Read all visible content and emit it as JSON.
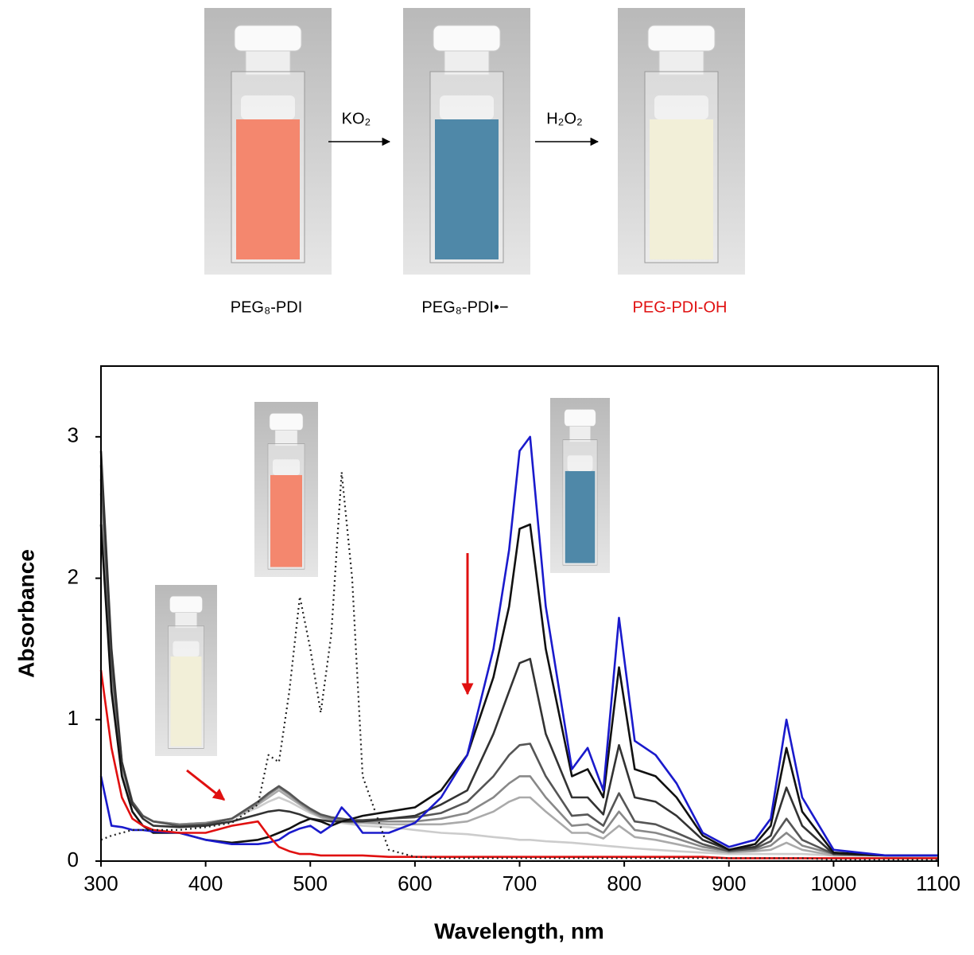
{
  "figure": {
    "photo_labels": [
      "PEG₈-PDI",
      "PEG₈-PDI•−",
      "PEG-PDI-OH"
    ],
    "reagents": [
      "KO₂",
      "H₂O₂"
    ]
  },
  "chart_data": {
    "type": "line",
    "x_label": "Wavelength, nm",
    "y_label": "Absorbance",
    "xlim": [
      300,
      1100
    ],
    "xticks": [
      300,
      400,
      500,
      600,
      700,
      800,
      900,
      1000,
      1100
    ],
    "ylim": [
      0,
      3.5
    ],
    "yticks": [
      0,
      1,
      2,
      3
    ],
    "x": [
      300,
      310,
      320,
      330,
      340,
      350,
      375,
      400,
      425,
      450,
      460,
      470,
      480,
      490,
      500,
      510,
      520,
      530,
      540,
      550,
      575,
      600,
      625,
      650,
      675,
      690,
      700,
      710,
      725,
      750,
      765,
      780,
      795,
      810,
      830,
      850,
      875,
      900,
      925,
      940,
      955,
      970,
      1000,
      1050,
      1100
    ],
    "series": [
      {
        "color": "#cccccc",
        "values": [
          2.6,
          1.3,
          0.65,
          0.4,
          0.32,
          0.28,
          0.26,
          0.27,
          0.3,
          0.38,
          0.42,
          0.45,
          0.42,
          0.38,
          0.34,
          0.31,
          0.29,
          0.27,
          0.26,
          0.25,
          0.24,
          0.22,
          0.2,
          0.19,
          0.17,
          0.16,
          0.15,
          0.15,
          0.14,
          0.13,
          0.12,
          0.11,
          0.1,
          0.09,
          0.08,
          0.07,
          0.06,
          0.05,
          0.05,
          0.05,
          0.05,
          0.05,
          0.04,
          0.04,
          0.04
        ]
      },
      {
        "color": "#aaaaaa",
        "values": [
          2.6,
          1.3,
          0.65,
          0.4,
          0.32,
          0.28,
          0.26,
          0.27,
          0.3,
          0.4,
          0.45,
          0.5,
          0.45,
          0.4,
          0.35,
          0.31,
          0.29,
          0.28,
          0.27,
          0.27,
          0.26,
          0.26,
          0.26,
          0.28,
          0.35,
          0.42,
          0.45,
          0.45,
          0.35,
          0.2,
          0.2,
          0.16,
          0.25,
          0.17,
          0.15,
          0.12,
          0.08,
          0.06,
          0.07,
          0.08,
          0.13,
          0.08,
          0.04,
          0.04,
          0.04
        ]
      },
      {
        "color": "#888888",
        "values": [
          2.7,
          1.35,
          0.68,
          0.41,
          0.32,
          0.28,
          0.26,
          0.27,
          0.3,
          0.41,
          0.47,
          0.52,
          0.47,
          0.41,
          0.36,
          0.32,
          0.3,
          0.29,
          0.28,
          0.28,
          0.28,
          0.28,
          0.3,
          0.34,
          0.45,
          0.55,
          0.6,
          0.6,
          0.45,
          0.25,
          0.26,
          0.2,
          0.35,
          0.22,
          0.2,
          0.16,
          0.1,
          0.07,
          0.08,
          0.11,
          0.2,
          0.11,
          0.05,
          0.04,
          0.04
        ]
      },
      {
        "color": "#555555",
        "values": [
          2.8,
          1.4,
          0.7,
          0.42,
          0.32,
          0.28,
          0.25,
          0.26,
          0.3,
          0.42,
          0.48,
          0.53,
          0.48,
          0.42,
          0.37,
          0.33,
          0.31,
          0.3,
          0.29,
          0.29,
          0.3,
          0.31,
          0.34,
          0.42,
          0.6,
          0.75,
          0.82,
          0.83,
          0.6,
          0.32,
          0.33,
          0.25,
          0.48,
          0.28,
          0.26,
          0.2,
          0.12,
          0.07,
          0.09,
          0.14,
          0.3,
          0.15,
          0.05,
          0.04,
          0.04
        ]
      },
      {
        "color": "#333333",
        "values": [
          2.9,
          1.5,
          0.7,
          0.4,
          0.3,
          0.25,
          0.24,
          0.25,
          0.28,
          0.33,
          0.35,
          0.36,
          0.35,
          0.33,
          0.3,
          0.29,
          0.28,
          0.28,
          0.28,
          0.28,
          0.3,
          0.32,
          0.4,
          0.5,
          0.9,
          1.2,
          1.4,
          1.43,
          0.9,
          0.45,
          0.45,
          0.33,
          0.82,
          0.45,
          0.42,
          0.32,
          0.15,
          0.08,
          0.1,
          0.18,
          0.52,
          0.25,
          0.05,
          0.04,
          0.04
        ]
      },
      {
        "color": "#111111",
        "values": [
          2.38,
          1.2,
          0.6,
          0.35,
          0.25,
          0.2,
          0.2,
          0.15,
          0.13,
          0.15,
          0.17,
          0.2,
          0.23,
          0.27,
          0.3,
          0.28,
          0.25,
          0.28,
          0.3,
          0.32,
          0.35,
          0.38,
          0.5,
          0.75,
          1.3,
          1.8,
          2.35,
          2.38,
          1.5,
          0.6,
          0.65,
          0.45,
          1.37,
          0.65,
          0.6,
          0.45,
          0.18,
          0.08,
          0.12,
          0.25,
          0.8,
          0.35,
          0.06,
          0.04,
          0.04
        ]
      },
      {
        "color": "#1a1acc",
        "values": [
          0.6,
          0.25,
          0.24,
          0.22,
          0.22,
          0.21,
          0.2,
          0.15,
          0.12,
          0.12,
          0.13,
          0.15,
          0.2,
          0.23,
          0.25,
          0.2,
          0.25,
          0.38,
          0.3,
          0.2,
          0.2,
          0.27,
          0.45,
          0.75,
          1.5,
          2.2,
          2.9,
          3.0,
          1.8,
          0.65,
          0.8,
          0.5,
          1.72,
          0.85,
          0.75,
          0.55,
          0.2,
          0.1,
          0.15,
          0.3,
          1.0,
          0.45,
          0.08,
          0.04,
          0.04
        ]
      },
      {
        "color": "#e01010",
        "values": [
          1.35,
          0.8,
          0.45,
          0.3,
          0.25,
          0.22,
          0.2,
          0.2,
          0.25,
          0.28,
          0.18,
          0.1,
          0.07,
          0.05,
          0.05,
          0.04,
          0.04,
          0.04,
          0.04,
          0.04,
          0.03,
          0.03,
          0.03,
          0.03,
          0.03,
          0.03,
          0.03,
          0.03,
          0.03,
          0.03,
          0.03,
          0.03,
          0.03,
          0.03,
          0.03,
          0.03,
          0.03,
          0.02,
          0.02,
          0.02,
          0.02,
          0.02,
          0.02,
          0.02,
          0.02
        ]
      },
      {
        "color": "#222222",
        "dash": true,
        "values": [
          0.15,
          0.18,
          0.2,
          0.22,
          0.22,
          0.22,
          0.22,
          0.24,
          0.27,
          0.4,
          0.75,
          0.7,
          1.2,
          1.87,
          1.5,
          1.05,
          1.6,
          2.75,
          2.0,
          0.6,
          0.08,
          0.03,
          0.02,
          0.02,
          0.02,
          0.02,
          0.02,
          0.02,
          0.02,
          0.02,
          0.02,
          0.02,
          0.02,
          0.02,
          0.02,
          0.02,
          0.02,
          0.02,
          0.02,
          0.02,
          0.02,
          0.02,
          0.01,
          0.01,
          0.01
        ]
      }
    ]
  }
}
